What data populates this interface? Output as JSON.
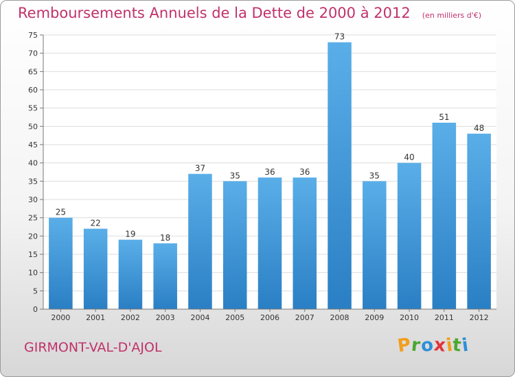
{
  "chart_data": {
    "type": "bar",
    "title": "Remboursements Annuels de la Dette de 2000 à 2012",
    "subtitle": "(en milliers d'€)",
    "categories": [
      "2000",
      "2001",
      "2002",
      "2003",
      "2004",
      "2005",
      "2006",
      "2007",
      "2008",
      "2009",
      "2010",
      "2011",
      "2012"
    ],
    "values": [
      25,
      22,
      19,
      18,
      37,
      35,
      36,
      36,
      73,
      35,
      40,
      51,
      48
    ],
    "ylim": [
      0,
      75
    ],
    "yticks": [
      0,
      5,
      10,
      15,
      20,
      25,
      30,
      35,
      40,
      45,
      50,
      55,
      60,
      65,
      70,
      75
    ],
    "grid": true,
    "legend": "none",
    "bar_color_top": "#5aaee8",
    "bar_color_bottom": "#2a7fc4",
    "label_color": "#333333"
  },
  "footer": {
    "commune": "GIRMONT-VAL-D'AJOL"
  },
  "brand": {
    "letters": [
      "P",
      "r",
      "o",
      "x",
      "i",
      "t",
      "i"
    ],
    "colors": [
      "#f29e1c",
      "#4aa832",
      "#2e8fd8",
      "#e2333a",
      "#f29e1c",
      "#4aa832",
      "#2e8fd8"
    ]
  }
}
